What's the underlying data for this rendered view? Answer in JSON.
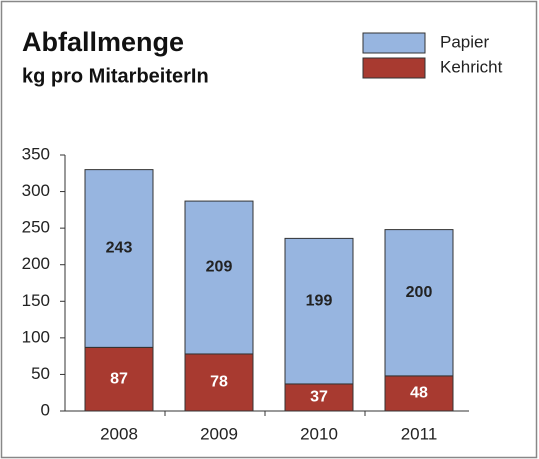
{
  "chart_data": {
    "type": "stacked_bar",
    "title": "Abfallmenge",
    "subtitle": "kg pro MitarbeiterIn",
    "categories": [
      "2008",
      "2009",
      "2010",
      "2011"
    ],
    "series": [
      {
        "name": "Kehricht",
        "color": "#a83a30",
        "values": [
          87,
          78,
          37,
          48
        ]
      },
      {
        "name": "Papier",
        "color": "#97b5e0",
        "values": [
          243,
          209,
          199,
          200
        ]
      }
    ],
    "ylim": [
      0,
      350
    ],
    "yticks": [
      0,
      50,
      100,
      150,
      200,
      250,
      300,
      350
    ],
    "legend": "top-right"
  }
}
